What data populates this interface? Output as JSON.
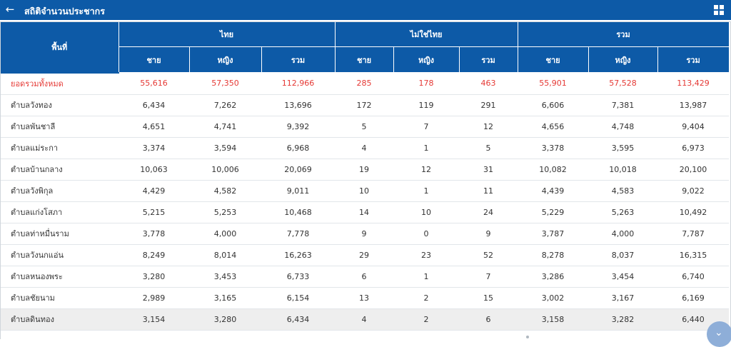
{
  "header": {
    "title": "สถิติจำนวนประชากร",
    "back_icon": "arrow-left-icon",
    "menu_icon": "grid-icon"
  },
  "table": {
    "area_label": "พื้นที่",
    "groups": [
      "ไทย",
      "ไม่ใช่ไทย",
      "รวม"
    ],
    "subcolumns": [
      "ชาย",
      "หญิง",
      "รวม"
    ],
    "rows": [
      {
        "name": "ยอดรวมทั้งหมด",
        "v": [
          "55,616",
          "57,350",
          "112,966",
          "285",
          "178",
          "463",
          "55,901",
          "57,528",
          "113,429"
        ]
      },
      {
        "name": "ตำบลวังทอง",
        "v": [
          "6,434",
          "7,262",
          "13,696",
          "172",
          "119",
          "291",
          "6,606",
          "7,381",
          "13,987"
        ]
      },
      {
        "name": "ตำบลพันชาลี",
        "v": [
          "4,651",
          "4,741",
          "9,392",
          "5",
          "7",
          "12",
          "4,656",
          "4,748",
          "9,404"
        ]
      },
      {
        "name": "ตำบลแม่ระกา",
        "v": [
          "3,374",
          "3,594",
          "6,968",
          "4",
          "1",
          "5",
          "3,378",
          "3,595",
          "6,973"
        ]
      },
      {
        "name": "ตำบลบ้านกลาง",
        "v": [
          "10,063",
          "10,006",
          "20,069",
          "19",
          "12",
          "31",
          "10,082",
          "10,018",
          "20,100"
        ]
      },
      {
        "name": "ตำบลวังพิกุล",
        "v": [
          "4,429",
          "4,582",
          "9,011",
          "10",
          "1",
          "11",
          "4,439",
          "4,583",
          "9,022"
        ]
      },
      {
        "name": "ตำบลแก่งโสภา",
        "v": [
          "5,215",
          "5,253",
          "10,468",
          "14",
          "10",
          "24",
          "5,229",
          "5,263",
          "10,492"
        ]
      },
      {
        "name": "ตำบลท่าหมื่นราม",
        "v": [
          "3,778",
          "4,000",
          "7,778",
          "9",
          "0",
          "9",
          "3,787",
          "4,000",
          "7,787"
        ]
      },
      {
        "name": "ตำบลวังนกแอ่น",
        "v": [
          "8,249",
          "8,014",
          "16,263",
          "29",
          "23",
          "52",
          "8,278",
          "8,037",
          "16,315"
        ]
      },
      {
        "name": "ตำบลหนองพระ",
        "v": [
          "3,280",
          "3,453",
          "6,733",
          "6",
          "1",
          "7",
          "3,286",
          "3,454",
          "6,740"
        ]
      },
      {
        "name": "ตำบลชัยนาม",
        "v": [
          "2,989",
          "3,165",
          "6,154",
          "13",
          "2",
          "15",
          "3,002",
          "3,167",
          "6,169"
        ]
      },
      {
        "name": "ตำบลดินทอง",
        "v": [
          "3,154",
          "3,280",
          "6,434",
          "4",
          "2",
          "6",
          "3,158",
          "3,282",
          "6,440"
        ]
      }
    ]
  },
  "colors": {
    "header_blue": "#0d5aa7",
    "total_red": "#e53935"
  },
  "scroll_icon": "chevron-down-icon"
}
